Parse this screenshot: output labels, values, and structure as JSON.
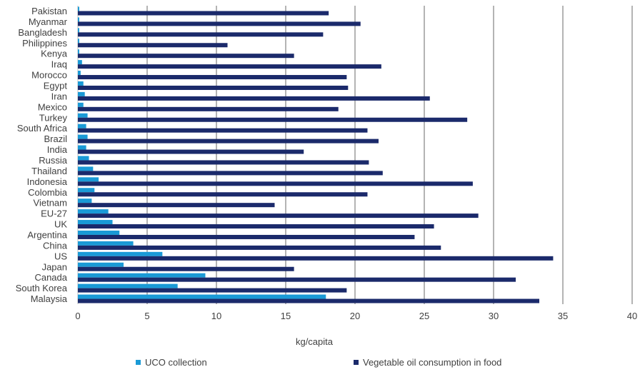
{
  "chart_data": {
    "type": "bar",
    "orientation": "horizontal",
    "xlabel": "kg/capita",
    "xlim": [
      0,
      40
    ],
    "xticks": [
      "0",
      "5",
      "10",
      "15",
      "20",
      "25",
      "30",
      "35",
      "40"
    ],
    "grid": true,
    "legend_position": "bottom",
    "categories": [
      "Pakistan",
      "Myanmar",
      "Bangladesh",
      "Philippines",
      "Kenya",
      "Iraq",
      "Morocco",
      "Egypt",
      "Iran",
      "Mexico",
      "Turkey",
      "South Africa",
      "Brazil",
      "India",
      "Russia",
      "Thailand",
      "Indonesia",
      "Colombia",
      "Vietnam",
      "EU-27",
      "UK",
      "Argentina",
      "China",
      "US",
      "Japan",
      "Canada",
      "South Korea",
      "Malaysia"
    ],
    "series": [
      {
        "name": "UCO collection",
        "color": "#1a9ad6",
        "values": [
          0.1,
          0.1,
          0.1,
          0.1,
          0.1,
          0.3,
          0.2,
          0.4,
          0.5,
          0.4,
          0.7,
          0.6,
          0.7,
          0.6,
          0.8,
          1.1,
          1.5,
          1.2,
          1.0,
          2.2,
          2.5,
          3.0,
          4.0,
          6.1,
          3.3,
          9.2,
          7.2,
          17.9
        ]
      },
      {
        "name": "Vegetable oil consumption in food",
        "color": "#1b2a6b",
        "values": [
          18.1,
          20.4,
          17.7,
          10.8,
          15.6,
          21.9,
          19.4,
          19.5,
          25.4,
          18.8,
          28.1,
          20.9,
          21.7,
          16.3,
          21.0,
          22.0,
          28.5,
          20.9,
          14.2,
          28.9,
          25.7,
          24.3,
          26.2,
          34.3,
          15.6,
          31.6,
          19.4,
          33.3
        ]
      }
    ]
  }
}
